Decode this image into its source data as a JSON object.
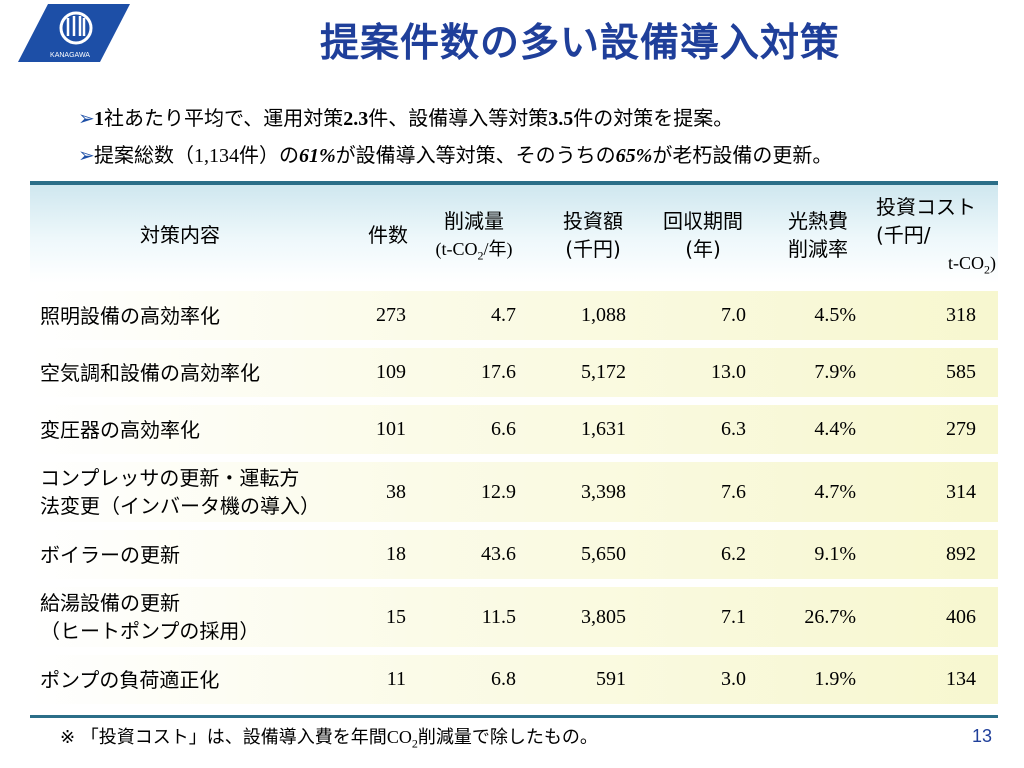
{
  "logo": {
    "text": "KANAGAWA",
    "color": "#1d4fa7"
  },
  "title": "提案件数の多い設備導入対策",
  "bullets": [
    {
      "parts": [
        "1",
        "社あたり平均で、運用対策",
        "2.3",
        "件、設備導入等対策",
        "3.5",
        "件の対策を提案。"
      ]
    },
    {
      "parts": [
        "提案総数（",
        "1,134",
        "件）の",
        "61%",
        "が設備導入等対策、そのうちの",
        "65%",
        "が老朽設備の更新。"
      ]
    }
  ],
  "table": {
    "headers": {
      "measure": "対策内容",
      "count": "件数",
      "reduction_l1": "削減量",
      "reduction_l2a": "(t-CO",
      "reduction_l2b": "2",
      "reduction_l2c": "/年)",
      "invest_l1": "投資額",
      "invest_l2": "(千円)",
      "payback_l1": "回収期間",
      "payback_l2": "(年)",
      "savings_l1": "光熱費",
      "savings_l2": "削減率",
      "cost_l1": "投資コスト",
      "cost_l2": "(千円/",
      "cost_l3a": "t-CO",
      "cost_l3b": "2",
      "cost_l3c": ")"
    },
    "rows": [
      {
        "name1": "照明設備の高効率化",
        "name2": "",
        "count": "273",
        "reduction": "4.7",
        "invest": "1,088",
        "payback": "7.0",
        "savings": "4.5%",
        "cost": "318"
      },
      {
        "name1": "空気調和設備の高効率化",
        "name2": "",
        "count": "109",
        "reduction": "17.6",
        "invest": "5,172",
        "payback": "13.0",
        "savings": "7.9%",
        "cost": "585"
      },
      {
        "name1": "変圧器の高効率化",
        "name2": "",
        "count": "101",
        "reduction": "6.6",
        "invest": "1,631",
        "payback": "6.3",
        "savings": "4.4%",
        "cost": "279"
      },
      {
        "name1": "コンプレッサの更新・運転方",
        "name2": "法変更（インバータ機の導入）",
        "count": "38",
        "reduction": "12.9",
        "invest": "3,398",
        "payback": "7.6",
        "savings": "4.7%",
        "cost": "314"
      },
      {
        "name1": "ボイラーの更新",
        "name2": "",
        "count": "18",
        "reduction": "43.6",
        "invest": "5,650",
        "payback": "6.2",
        "savings": "9.1%",
        "cost": "892"
      },
      {
        "name1": "給湯設備の更新",
        "name2": "（ヒートポンプの採用）",
        "count": "15",
        "reduction": "11.5",
        "invest": "3,805",
        "payback": "7.1",
        "savings": "26.7%",
        "cost": "406"
      },
      {
        "name1": "ポンプの負荷適正化",
        "name2": "",
        "count": "11",
        "reduction": "6.8",
        "invest": "591",
        "payback": "3.0",
        "savings": "1.9%",
        "cost": "134"
      }
    ]
  },
  "note": {
    "a": "※ 「投資コスト」は、設備導入費を年間",
    "b": "CO",
    "c": "2",
    "d": "削減量で除したもの。"
  },
  "page_number": "13"
}
